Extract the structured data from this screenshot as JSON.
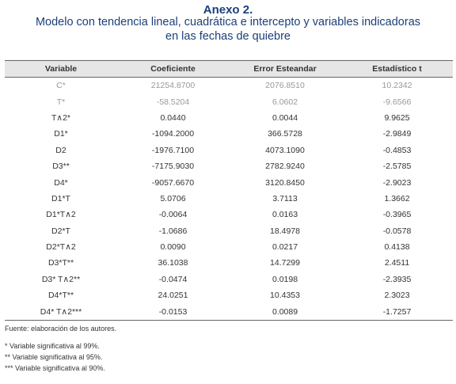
{
  "title": "Anexo 2.",
  "subtitle_line1": "Modelo con tendencia lineal, cuadrática e intercepto y variables indicadoras",
  "subtitle_line2": "en las fechas de quiebre",
  "columns": [
    "Variable",
    "Coeficiente",
    "Error Esteandar",
    "Estadístico t"
  ],
  "rows": [
    [
      "C*",
      "21254.8700",
      "2076.8510",
      "10.2342"
    ],
    [
      "T*",
      "-58.5204",
      "6.0602",
      "-9.6566"
    ],
    [
      "T∧2*",
      "0.0440",
      "0.0044",
      "9.9625"
    ],
    [
      "D1*",
      "-1094.2000",
      "366.5728",
      "-2.9849"
    ],
    [
      "D2",
      "-1976.7100",
      "4073.1090",
      "-0.4853"
    ],
    [
      "D3**",
      "-7175.9030",
      "2782.9240",
      "-2.5785"
    ],
    [
      "D4*",
      "-9057.6670",
      "3120.8450",
      "-2.9023"
    ],
    [
      "D1*T",
      "5.0706",
      "3.7113",
      "1.3662"
    ],
    [
      "D1*T∧2",
      "-0.0064",
      "0.0163",
      "-0.3965"
    ],
    [
      "D2*T",
      "-1.0686",
      "18.4978",
      "-0.0578"
    ],
    [
      "D2*T∧2",
      "0.0090",
      "0.0217",
      "0.4138"
    ],
    [
      "D3*T**",
      "36.1038",
      "14.7299",
      "2.4511"
    ],
    [
      "D3* T∧2**",
      "-0.0474",
      "0.0198",
      "-2.3935"
    ],
    [
      "D4*T**",
      "24.0251",
      "10.4353",
      "2.3023"
    ],
    [
      "D4* T∧2***",
      "-0.0153",
      "0.0089",
      "-1.7257"
    ]
  ],
  "notes": {
    "source": "Fuente: elaboración de los autores.",
    "n1": "* Variable significativa al 99%.",
    "n2": "** Variable significativa al 95%.",
    "n3": "*** Variable significativa al 90%."
  }
}
